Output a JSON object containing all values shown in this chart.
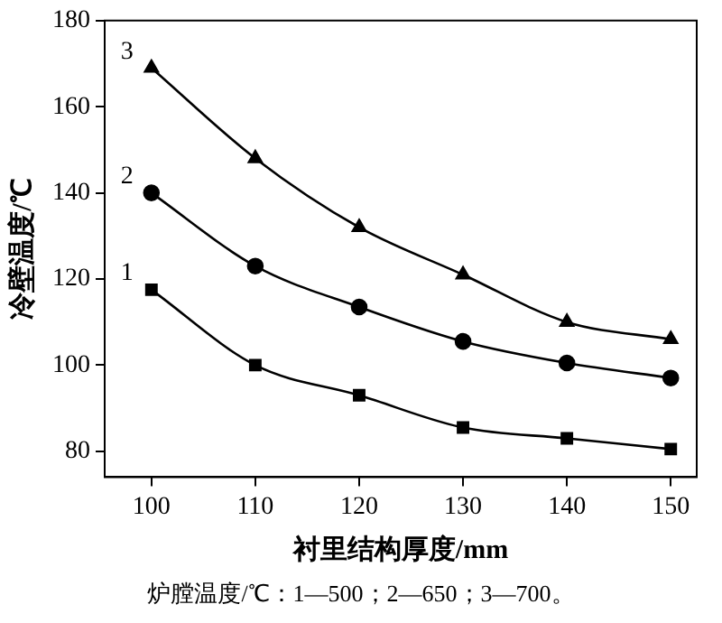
{
  "chart_data": {
    "type": "line",
    "xlabel": "衬里结构厚度/mm",
    "ylabel": "冷壁温度/℃",
    "x": [
      100,
      110,
      120,
      130,
      140,
      150
    ],
    "series": [
      {
        "name": "1",
        "color": "#000000",
        "marker": "square",
        "values": [
          117.5,
          100,
          93,
          85.5,
          83,
          80.5
        ]
      },
      {
        "name": "2",
        "color": "#000000",
        "marker": "circle",
        "values": [
          140,
          123,
          113.5,
          105.5,
          100.5,
          97
        ]
      },
      {
        "name": "3",
        "color": "#000000",
        "marker": "triangle",
        "values": [
          169,
          148,
          132,
          121,
          110,
          106
        ]
      }
    ],
    "xlim": [
      95.5,
      152.5
    ],
    "xticks": [
      100,
      110,
      120,
      130,
      140,
      150
    ],
    "ylim": [
      74,
      180
    ],
    "yticks": [
      80,
      100,
      120,
      140,
      160,
      180
    ],
    "grid": false,
    "legend": false,
    "line_style": "solid",
    "annotations": [
      "炉膛温度/℃：1—500；2—650；3—700。"
    ]
  }
}
